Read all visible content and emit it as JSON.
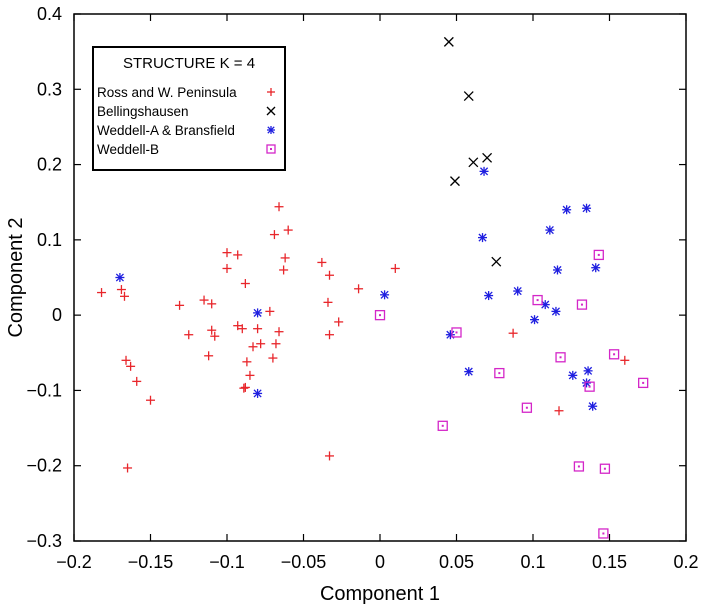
{
  "chart_data": {
    "type": "scatter",
    "title": "",
    "xlabel": "Component 1",
    "ylabel": "Component 2",
    "xlim": [
      -0.2,
      0.2
    ],
    "ylim": [
      -0.3,
      0.4
    ],
    "xticks": [
      -0.2,
      -0.15,
      -0.1,
      -0.05,
      0,
      0.05,
      0.1,
      0.15,
      0.2
    ],
    "xtick_labels": [
      "−0.2",
      "−0.15",
      "−0.1",
      "−0.05",
      "0",
      "0.05",
      "0.1",
      "0.15",
      "0.2"
    ],
    "yticks": [
      -0.3,
      -0.2,
      -0.1,
      0,
      0.1,
      0.2,
      0.3,
      0.4
    ],
    "ytick_labels": [
      "−0.3",
      "−0.2",
      "−0.1",
      "0",
      "0.1",
      "0.2",
      "0.3",
      "0.4"
    ],
    "grid": false,
    "legend": {
      "title": "STRUCTURE K = 4",
      "position": "top-left"
    },
    "series": [
      {
        "name": "Ross and W. Peninsula",
        "marker": "plus",
        "color": "#e8262b",
        "points": [
          [
            -0.182,
            0.03
          ],
          [
            -0.169,
            0.034
          ],
          [
            -0.167,
            0.025
          ],
          [
            -0.166,
            -0.06
          ],
          [
            -0.163,
            -0.068
          ],
          [
            -0.159,
            -0.088
          ],
          [
            -0.15,
            -0.113
          ],
          [
            -0.165,
            -0.203
          ],
          [
            -0.131,
            0.013
          ],
          [
            -0.125,
            -0.026
          ],
          [
            -0.115,
            0.02
          ],
          [
            -0.11,
            0.015
          ],
          [
            -0.11,
            -0.02
          ],
          [
            -0.112,
            -0.054
          ],
          [
            -0.108,
            -0.028
          ],
          [
            -0.1,
            0.083
          ],
          [
            -0.1,
            0.062
          ],
          [
            -0.093,
            0.08
          ],
          [
            -0.093,
            -0.014
          ],
          [
            -0.09,
            -0.018
          ],
          [
            -0.088,
            0.042
          ],
          [
            -0.087,
            -0.062
          ],
          [
            -0.089,
            -0.097
          ],
          [
            -0.088,
            -0.096
          ],
          [
            -0.085,
            -0.08
          ],
          [
            -0.083,
            -0.042
          ],
          [
            -0.08,
            -0.018
          ],
          [
            -0.078,
            -0.038
          ],
          [
            -0.072,
            0.005
          ],
          [
            -0.069,
            0.107
          ],
          [
            -0.066,
            0.144
          ],
          [
            -0.063,
            0.06
          ],
          [
            -0.062,
            0.076
          ],
          [
            -0.06,
            0.113
          ],
          [
            -0.07,
            -0.057
          ],
          [
            -0.068,
            -0.038
          ],
          [
            -0.066,
            -0.022
          ],
          [
            -0.038,
            0.07
          ],
          [
            -0.033,
            0.053
          ],
          [
            -0.034,
            0.017
          ],
          [
            -0.033,
            -0.026
          ],
          [
            -0.027,
            -0.009
          ],
          [
            -0.014,
            0.035
          ],
          [
            -0.033,
            -0.187
          ],
          [
            0.01,
            0.062
          ],
          [
            0.087,
            -0.024
          ],
          [
            0.117,
            -0.127
          ],
          [
            0.16,
            -0.06
          ]
        ]
      },
      {
        "name": "Bellingshausen",
        "marker": "cross",
        "color": "#000000",
        "points": [
          [
            0.045,
            0.363
          ],
          [
            0.058,
            0.291
          ],
          [
            0.061,
            0.203
          ],
          [
            0.07,
            0.209
          ],
          [
            0.049,
            0.178
          ],
          [
            0.076,
            0.071
          ]
        ]
      },
      {
        "name": "Weddell-A & Bransfield",
        "marker": "star",
        "color": "#1f1fe0",
        "points": [
          [
            -0.17,
            0.05
          ],
          [
            -0.08,
            0.003
          ],
          [
            -0.08,
            -0.104
          ],
          [
            0.003,
            0.027
          ],
          [
            0.046,
            -0.026
          ],
          [
            0.058,
            -0.075
          ],
          [
            0.067,
            0.103
          ],
          [
            0.068,
            0.191
          ],
          [
            0.071,
            0.026
          ],
          [
            0.09,
            0.032
          ],
          [
            0.101,
            -0.006
          ],
          [
            0.108,
            0.014
          ],
          [
            0.111,
            0.113
          ],
          [
            0.115,
            0.005
          ],
          [
            0.116,
            0.06
          ],
          [
            0.122,
            0.14
          ],
          [
            0.126,
            -0.08
          ],
          [
            0.135,
            0.142
          ],
          [
            0.135,
            -0.09
          ],
          [
            0.136,
            -0.074
          ],
          [
            0.139,
            -0.121
          ],
          [
            0.141,
            0.063
          ]
        ]
      },
      {
        "name": "Weddell-B",
        "marker": "square",
        "color": "#d426c8",
        "points": [
          [
            0.0,
            0.0
          ],
          [
            0.05,
            -0.023
          ],
          [
            0.041,
            -0.147
          ],
          [
            0.078,
            -0.077
          ],
          [
            0.096,
            -0.123
          ],
          [
            0.103,
            0.02
          ],
          [
            0.118,
            -0.056
          ],
          [
            0.13,
            -0.201
          ],
          [
            0.132,
            0.014
          ],
          [
            0.137,
            -0.095
          ],
          [
            0.143,
            0.08
          ],
          [
            0.147,
            -0.204
          ],
          [
            0.146,
            -0.29
          ],
          [
            0.153,
            -0.052
          ],
          [
            0.172,
            -0.09
          ]
        ]
      }
    ]
  }
}
